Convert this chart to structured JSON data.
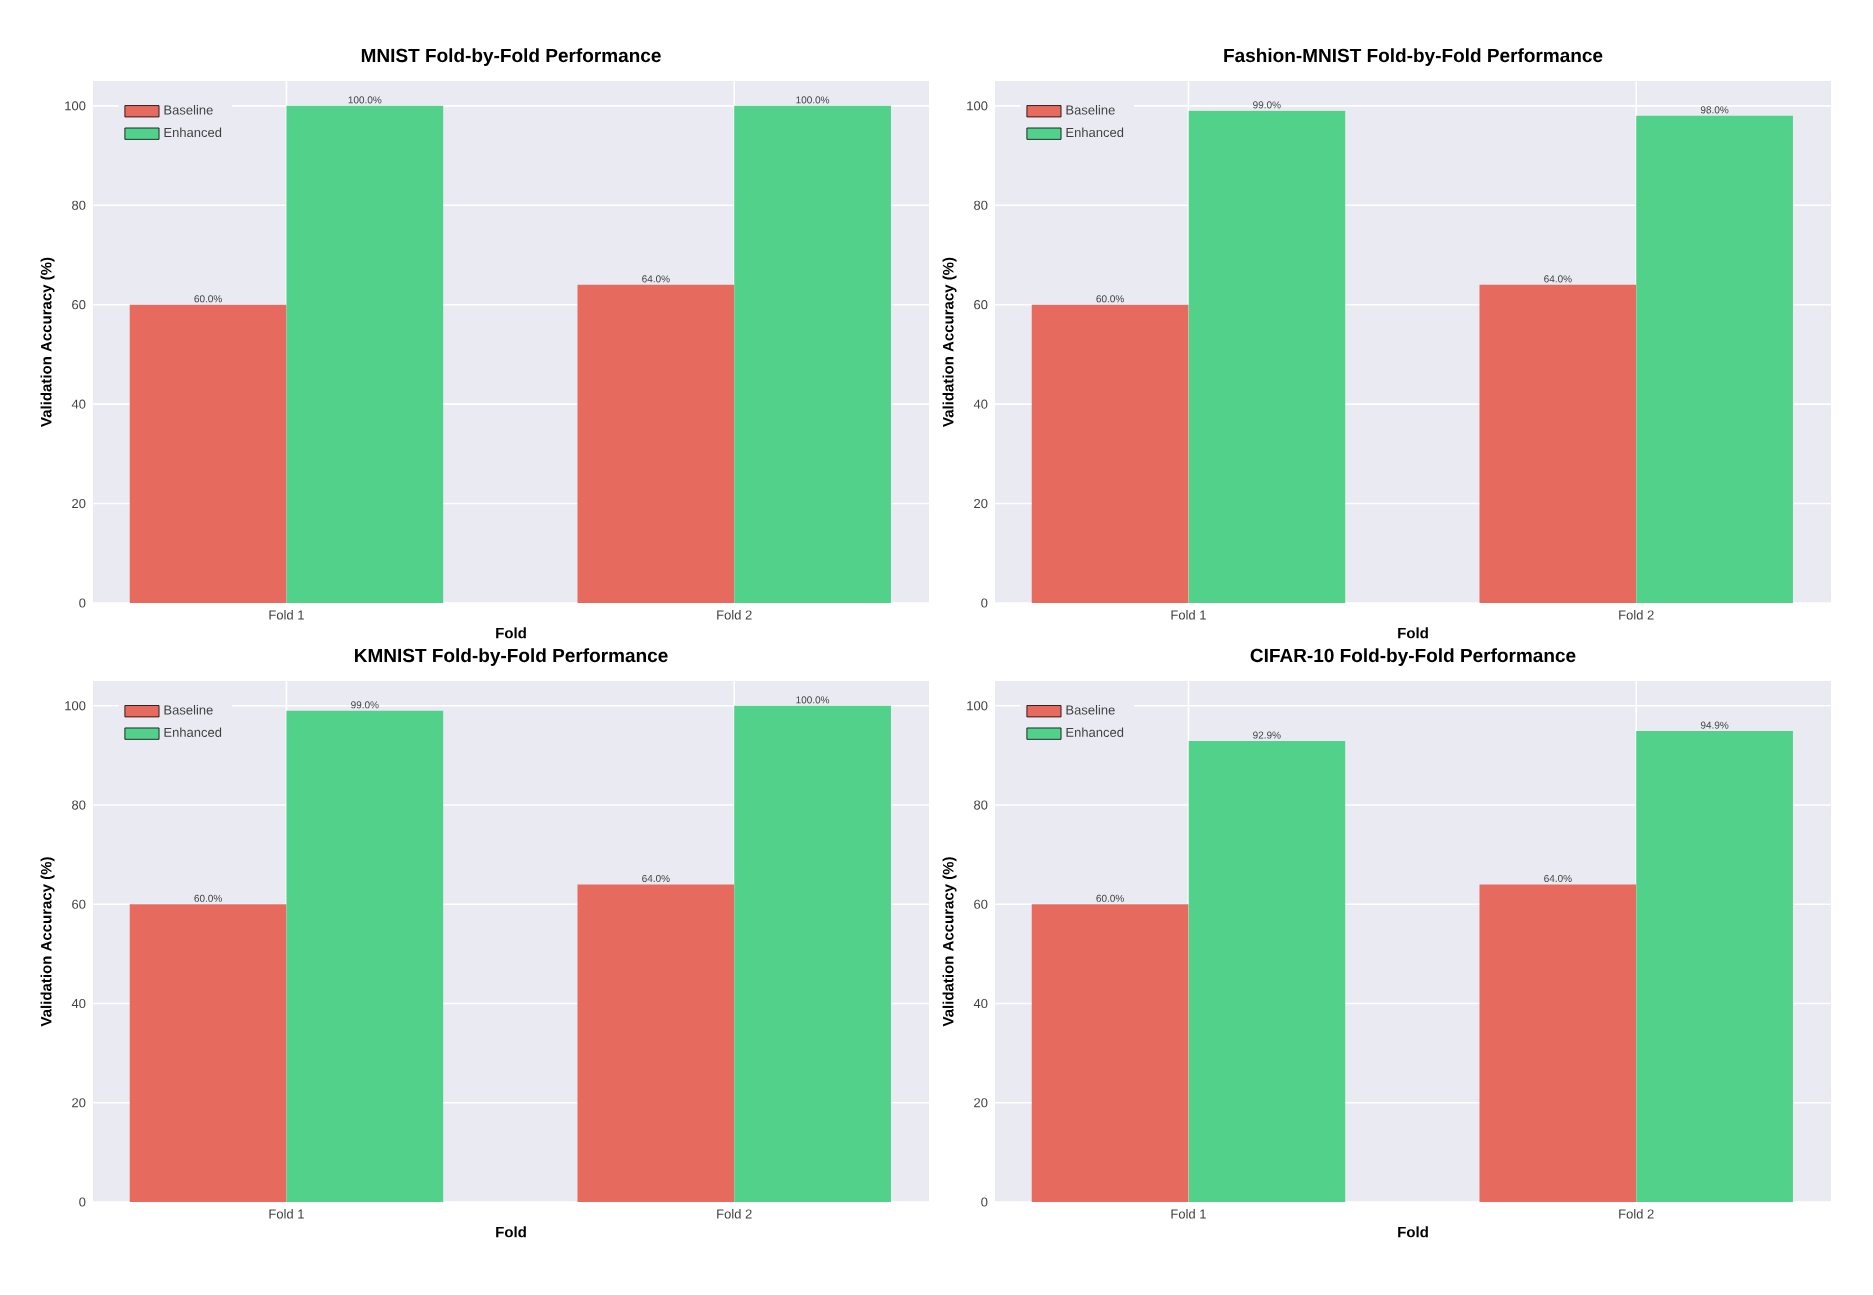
{
  "chart_data": [
    {
      "type": "bar",
      "title": "MNIST Fold-by-Fold Performance",
      "xlabel": "Fold",
      "ylabel": "Validation Accuracy (%)",
      "categories": [
        "Fold 1",
        "Fold 2"
      ],
      "series": [
        {
          "name": "Baseline",
          "color": "#e76a5e",
          "values": [
            60.0,
            64.0
          ],
          "value_labels": [
            "60.0%",
            "64.0%"
          ]
        },
        {
          "name": "Enhanced",
          "color": "#52d18b",
          "values": [
            100.0,
            100.0
          ],
          "value_labels": [
            "100.0%",
            "100.0%"
          ]
        }
      ],
      "ylim": [
        0,
        105
      ],
      "yticks": [
        0,
        20,
        40,
        60,
        80,
        100
      ],
      "grid": true,
      "legend": "top left"
    },
    {
      "type": "bar",
      "title": "Fashion-MNIST Fold-by-Fold Performance",
      "xlabel": "Fold",
      "ylabel": "Validation Accuracy (%)",
      "categories": [
        "Fold 1",
        "Fold 2"
      ],
      "series": [
        {
          "name": "Baseline",
          "color": "#e76a5e",
          "values": [
            60.0,
            64.0
          ],
          "value_labels": [
            "60.0%",
            "64.0%"
          ]
        },
        {
          "name": "Enhanced",
          "color": "#52d18b",
          "values": [
            99.0,
            98.0
          ],
          "value_labels": [
            "99.0%",
            "98.0%"
          ]
        }
      ],
      "ylim": [
        0,
        105
      ],
      "yticks": [
        0,
        20,
        40,
        60,
        80,
        100
      ],
      "grid": true,
      "legend": "top left"
    },
    {
      "type": "bar",
      "title": "KMNIST Fold-by-Fold Performance",
      "xlabel": "Fold",
      "ylabel": "Validation Accuracy (%)",
      "categories": [
        "Fold 1",
        "Fold 2"
      ],
      "series": [
        {
          "name": "Baseline",
          "color": "#e76a5e",
          "values": [
            60.0,
            64.0
          ],
          "value_labels": [
            "60.0%",
            "64.0%"
          ]
        },
        {
          "name": "Enhanced",
          "color": "#52d18b",
          "values": [
            99.0,
            100.0
          ],
          "value_labels": [
            "99.0%",
            "100.0%"
          ]
        }
      ],
      "ylim": [
        0,
        105
      ],
      "yticks": [
        0,
        20,
        40,
        60,
        80,
        100
      ],
      "grid": true,
      "legend": "top left"
    },
    {
      "type": "bar",
      "title": "CIFAR-10 Fold-by-Fold Performance",
      "xlabel": "Fold",
      "ylabel": "Validation Accuracy (%)",
      "categories": [
        "Fold 1",
        "Fold 2"
      ],
      "series": [
        {
          "name": "Baseline",
          "color": "#e76a5e",
          "values": [
            60.0,
            64.0
          ],
          "value_labels": [
            "60.0%",
            "64.0%"
          ]
        },
        {
          "name": "Enhanced",
          "color": "#52d18b",
          "values": [
            92.9,
            94.9
          ],
          "value_labels": [
            "92.9%",
            "94.9%"
          ]
        }
      ],
      "ylim": [
        0,
        105
      ],
      "yticks": [
        0,
        20,
        40,
        60,
        80,
        100
      ],
      "grid": true,
      "legend": "top left"
    }
  ]
}
